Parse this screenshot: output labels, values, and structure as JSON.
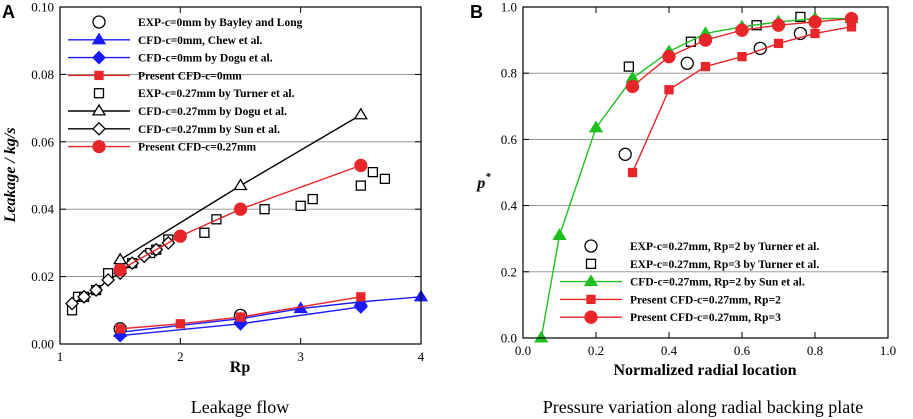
{
  "chart_data": [
    {
      "panel": "A",
      "type": "scatter",
      "caption": "Leakage flow",
      "xlabel": "Rp",
      "ylabel": "Leakage / kg/s",
      "xlim": [
        1,
        4
      ],
      "ylim": [
        0,
        0.1
      ],
      "xticks": [
        "1",
        "2",
        "3",
        "4"
      ],
      "yticks": [
        "0.00",
        "0.02",
        "0.04",
        "0.06",
        "0.08",
        "0.10"
      ],
      "grid": "horizontal",
      "legend_position": "top-left",
      "series": [
        {
          "name": "EXP-c=0mm by Bayley and Long",
          "marker": "circle-open",
          "color": "#000000",
          "line": false,
          "x": [
            1.5,
            2.5
          ],
          "y": [
            0.0045,
            0.0085
          ]
        },
        {
          "name": "CFD-c=0mm, Chew et al.",
          "marker": "triangle-filled",
          "color": "#1a1aff",
          "line": true,
          "x": [
            1.5,
            2.5,
            3.0,
            3.5,
            4.0
          ],
          "y": [
            0.0035,
            0.0075,
            0.0105,
            0.0125,
            0.014
          ]
        },
        {
          "name": "CFD-c=0mm by Dogu et al.",
          "marker": "diamond-filled",
          "color": "#1a1aff",
          "line": true,
          "x": [
            1.5,
            2.5,
            3.5
          ],
          "y": [
            0.0025,
            0.006,
            0.011
          ]
        },
        {
          "name": "Present CFD-c=0mm",
          "marker": "square-filled",
          "color": "#e8262a",
          "line": true,
          "x": [
            1.5,
            2.0,
            2.5,
            3.5
          ],
          "y": [
            0.0045,
            0.006,
            0.008,
            0.014
          ]
        },
        {
          "name": "EXP-c=0.27mm by Turner et al.",
          "marker": "square-open",
          "color": "#000000",
          "line": false,
          "x": [
            1.1,
            1.15,
            1.2,
            1.3,
            1.4,
            1.5,
            1.6,
            1.75,
            1.8,
            1.9,
            2.2,
            2.3,
            2.7,
            3.0,
            3.1,
            3.5,
            3.6,
            3.7
          ],
          "y": [
            0.01,
            0.014,
            0.014,
            0.016,
            0.021,
            0.022,
            0.024,
            0.027,
            0.028,
            0.031,
            0.033,
            0.037,
            0.04,
            0.041,
            0.043,
            0.047,
            0.051,
            0.049
          ]
        },
        {
          "name": "CFD-c=0.27mm by Dogu et al.",
          "marker": "triangle-open",
          "color": "#000000",
          "line": true,
          "x": [
            1.5,
            2.5,
            3.5
          ],
          "y": [
            0.025,
            0.047,
            0.068
          ]
        },
        {
          "name": "CFD-c=0.27mm by Sun et al.",
          "marker": "diamond-open",
          "color": "#000000",
          "line": true,
          "x": [
            1.1,
            1.2,
            1.3,
            1.4,
            1.5,
            1.6,
            1.7,
            1.8,
            1.9
          ],
          "y": [
            0.012,
            0.014,
            0.016,
            0.019,
            0.021,
            0.024,
            0.026,
            0.028,
            0.03
          ]
        },
        {
          "name": "Present CFD-c=0.27mm",
          "marker": "circle-filled",
          "color": "#e8262a",
          "line": true,
          "x": [
            1.5,
            2.0,
            2.5,
            3.5
          ],
          "y": [
            0.022,
            0.032,
            0.04,
            0.053
          ]
        }
      ]
    },
    {
      "panel": "B",
      "type": "scatter",
      "caption": "Pressure variation along radial backing plate",
      "xlabel": "Normalized radial location",
      "ylabel": "p",
      "ylabel_superscript": "*",
      "xlim": [
        0,
        1
      ],
      "ylim": [
        0,
        1
      ],
      "xticks": [
        "0.0",
        "0.2",
        "0.4",
        "0.6",
        "0.8",
        "1.0"
      ],
      "yticks": [
        "0.0",
        "0.2",
        "0.4",
        "0.6",
        "0.8",
        "1.0"
      ],
      "grid": "horizontal",
      "legend_position": "bottom-right",
      "series": [
        {
          "name": "EXP-c=0.27mm, Rp=2 by Turner et al.",
          "marker": "circle-open",
          "color": "#000000",
          "line": false,
          "x": [
            0.28,
            0.45,
            0.65,
            0.76
          ],
          "y": [
            0.555,
            0.83,
            0.875,
            0.92
          ]
        },
        {
          "name": "EXP-c=0.27mm, Rp=3 by Turner et al.",
          "marker": "square-open",
          "color": "#000000",
          "line": false,
          "x": [
            0.29,
            0.46,
            0.64,
            0.76
          ],
          "y": [
            0.82,
            0.895,
            0.945,
            0.97
          ]
        },
        {
          "name": "CFD-c=0.27mm, Rp=2 by Sun et al.",
          "marker": "triangle-filled",
          "color": "#1fbf1f",
          "line": true,
          "x": [
            0.05,
            0.1,
            0.2,
            0.3,
            0.4,
            0.5,
            0.6,
            0.7,
            0.8,
            0.9
          ],
          "y": [
            0.0,
            0.31,
            0.635,
            0.785,
            0.865,
            0.92,
            0.94,
            0.955,
            0.965,
            0.965
          ]
        },
        {
          "name": "Present CFD-c=0.27mm, Rp=2",
          "marker": "square-filled",
          "color": "#e8262a",
          "line": true,
          "x": [
            0.3,
            0.4,
            0.5,
            0.6,
            0.7,
            0.8,
            0.9
          ],
          "y": [
            0.5,
            0.75,
            0.82,
            0.85,
            0.89,
            0.92,
            0.94
          ]
        },
        {
          "name": "Present CFD-c=0.27mm, Rp=3",
          "marker": "circle-filled",
          "color": "#e8262a",
          "line": true,
          "x": [
            0.3,
            0.4,
            0.5,
            0.6,
            0.7,
            0.8,
            0.9
          ],
          "y": [
            0.76,
            0.85,
            0.9,
            0.93,
            0.945,
            0.955,
            0.965
          ]
        }
      ]
    }
  ]
}
